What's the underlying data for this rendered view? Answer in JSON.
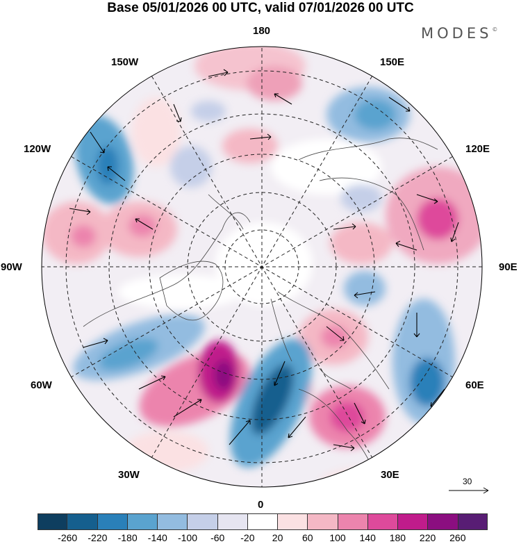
{
  "header": {
    "title": "Base 05/01/2026 00 UTC, valid 07/01/2026 00 UTC",
    "brand": "MODES",
    "brand_mark": "©"
  },
  "map": {
    "projection": "north-polar-stereographic",
    "longitude_labels": {
      "top": "180",
      "bottom": "0",
      "left": "90W",
      "right": "90E",
      "upper_left_outer": "150W",
      "upper_left_inner": "120W",
      "upper_right_outer": "150E",
      "upper_right_inner": "120E",
      "lower_left_inner": "60W",
      "lower_left_outer": "30W",
      "lower_right_inner": "60E",
      "lower_right_outer": "30E"
    },
    "reference_vector_label": "30"
  },
  "colorbar": {
    "colors": [
      "#0e3e5f",
      "#155f8e",
      "#2a80b9",
      "#5aa3cf",
      "#93bce0",
      "#c5cfe8",
      "#e6e5f1",
      "#ffffff",
      "#fbe1e3",
      "#f4b8c5",
      "#ec84ad",
      "#de4a9b",
      "#c01c8b",
      "#8b0e80",
      "#581d74"
    ],
    "tick_labels": [
      "-260",
      "-220",
      "-180",
      "-140",
      "-100",
      "-60",
      "-20",
      "20",
      "60",
      "100",
      "140",
      "180",
      "220",
      "260"
    ]
  }
}
